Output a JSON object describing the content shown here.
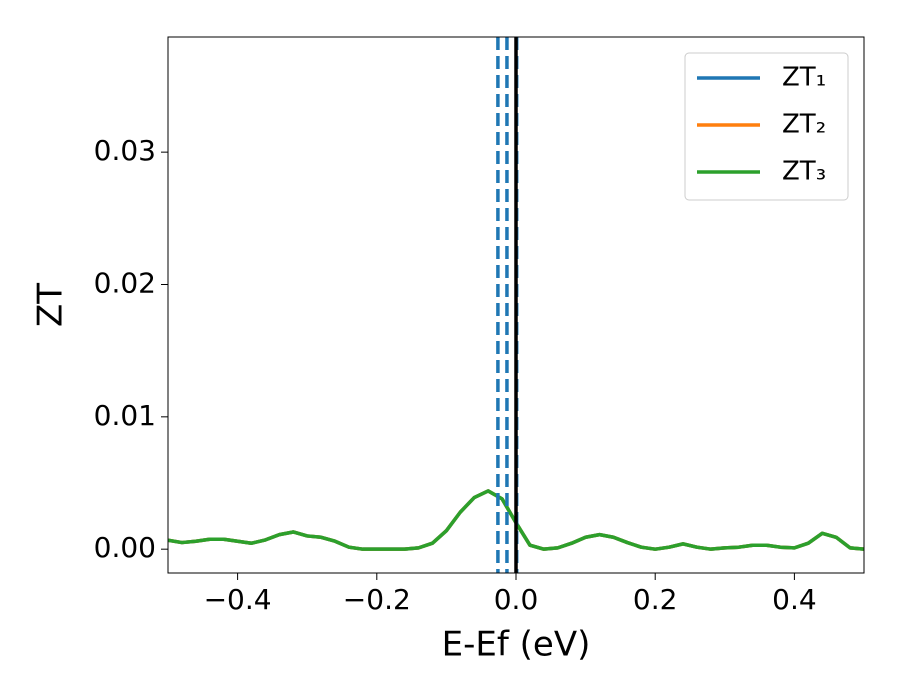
{
  "chart_data": {
    "type": "line",
    "xlabel": "E-Ef (eV)",
    "ylabel": "ZT",
    "x": [
      -0.5,
      -0.48,
      -0.46,
      -0.44,
      -0.42,
      -0.4,
      -0.38,
      -0.36,
      -0.34,
      -0.32,
      -0.3,
      -0.28,
      -0.26,
      -0.24,
      -0.22,
      -0.2,
      -0.18,
      -0.16,
      -0.14,
      -0.12,
      -0.1,
      -0.08,
      -0.06,
      -0.04,
      -0.02,
      0,
      0.02,
      0.04,
      0.06,
      0.08,
      0.1,
      0.12,
      0.14,
      0.16,
      0.18,
      0.2,
      0.22,
      0.24,
      0.26,
      0.28,
      0.3,
      0.32,
      0.34,
      0.36,
      0.38,
      0.4,
      0.42,
      0.44,
      0.46,
      0.48,
      0.5
    ],
    "series": [
      {
        "name": "ZT₁",
        "color": "#1f77b4",
        "values": [
          0.00068,
          0.0005,
          0.0006,
          0.00075,
          0.00075,
          0.0006,
          0.00045,
          0.0007,
          0.0011,
          0.0013,
          0.001,
          0.0009,
          0.0006,
          0.00015,
          0,
          0,
          0,
          0,
          0.0001,
          0.00045,
          0.0014,
          0.0028,
          0.0039,
          0.0044,
          0.0038,
          0.002,
          0.0003,
          0,
          0.0001,
          0.00045,
          0.0009,
          0.0011,
          0.0009,
          0.0005,
          0.00015,
          0,
          0.00015,
          0.0004,
          0.00015,
          0,
          0.0001,
          0.00015,
          0.0003,
          0.0003,
          0.00015,
          0.0001,
          0.00045,
          0.0012,
          0.0009,
          0.0001,
          0
        ]
      },
      {
        "name": "ZT₂",
        "color": "#ff7f0e",
        "values": [
          0.00068,
          0.0005,
          0.0006,
          0.00075,
          0.00075,
          0.0006,
          0.00045,
          0.0007,
          0.0011,
          0.0013,
          0.001,
          0.0009,
          0.0006,
          0.00015,
          0,
          0,
          0,
          0,
          0.0001,
          0.00045,
          0.0014,
          0.0028,
          0.0039,
          0.0044,
          0.0038,
          0.002,
          0.0003,
          0,
          0.0001,
          0.00045,
          0.0009,
          0.0011,
          0.0009,
          0.0005,
          0.00015,
          0,
          0.00015,
          0.0004,
          0.00015,
          0,
          0.0001,
          0.00015,
          0.0003,
          0.0003,
          0.00015,
          0.0001,
          0.00045,
          0.0012,
          0.0009,
          0.0001,
          0
        ]
      },
      {
        "name": "ZT₃",
        "color": "#2ca02c",
        "values": [
          0.00068,
          0.0005,
          0.0006,
          0.00075,
          0.00075,
          0.0006,
          0.00045,
          0.0007,
          0.0011,
          0.0013,
          0.001,
          0.0009,
          0.0006,
          0.00015,
          0,
          0,
          0,
          0,
          0.0001,
          0.00045,
          0.0014,
          0.0028,
          0.0039,
          0.0044,
          0.0038,
          0.002,
          0.0003,
          0,
          0.0001,
          0.00045,
          0.0009,
          0.0011,
          0.0009,
          0.0005,
          0.00015,
          0,
          0.00015,
          0.0004,
          0.00015,
          0,
          0.0001,
          0.00015,
          0.0003,
          0.0003,
          0.00015,
          0.0001,
          0.00045,
          0.0012,
          0.0009,
          0.0001,
          0
        ]
      }
    ],
    "vlines": [
      {
        "x": -0.026,
        "color": "#1f77b4",
        "dashed": true
      },
      {
        "x": -0.013,
        "color": "#1f77b4",
        "dashed": true
      },
      {
        "x": 0.001,
        "color": "#1f77b4",
        "dashed": true
      },
      {
        "x": 0,
        "color": "#000000",
        "dashed": false
      }
    ],
    "xlim": [
      -0.5,
      0.5
    ],
    "xticks": [
      {
        "value": -0.4,
        "label": "−0.4"
      },
      {
        "value": -0.2,
        "label": "−0.2"
      },
      {
        "value": 0,
        "label": "0.0"
      },
      0.2,
      0.4
    ],
    "ylim": [
      -0.0018,
      0.0387
    ],
    "yticks": [
      {
        "value": 0,
        "label": "0.00"
      },
      0.01,
      0.02,
      0.03
    ],
    "grid": false,
    "legend": "upper right"
  }
}
